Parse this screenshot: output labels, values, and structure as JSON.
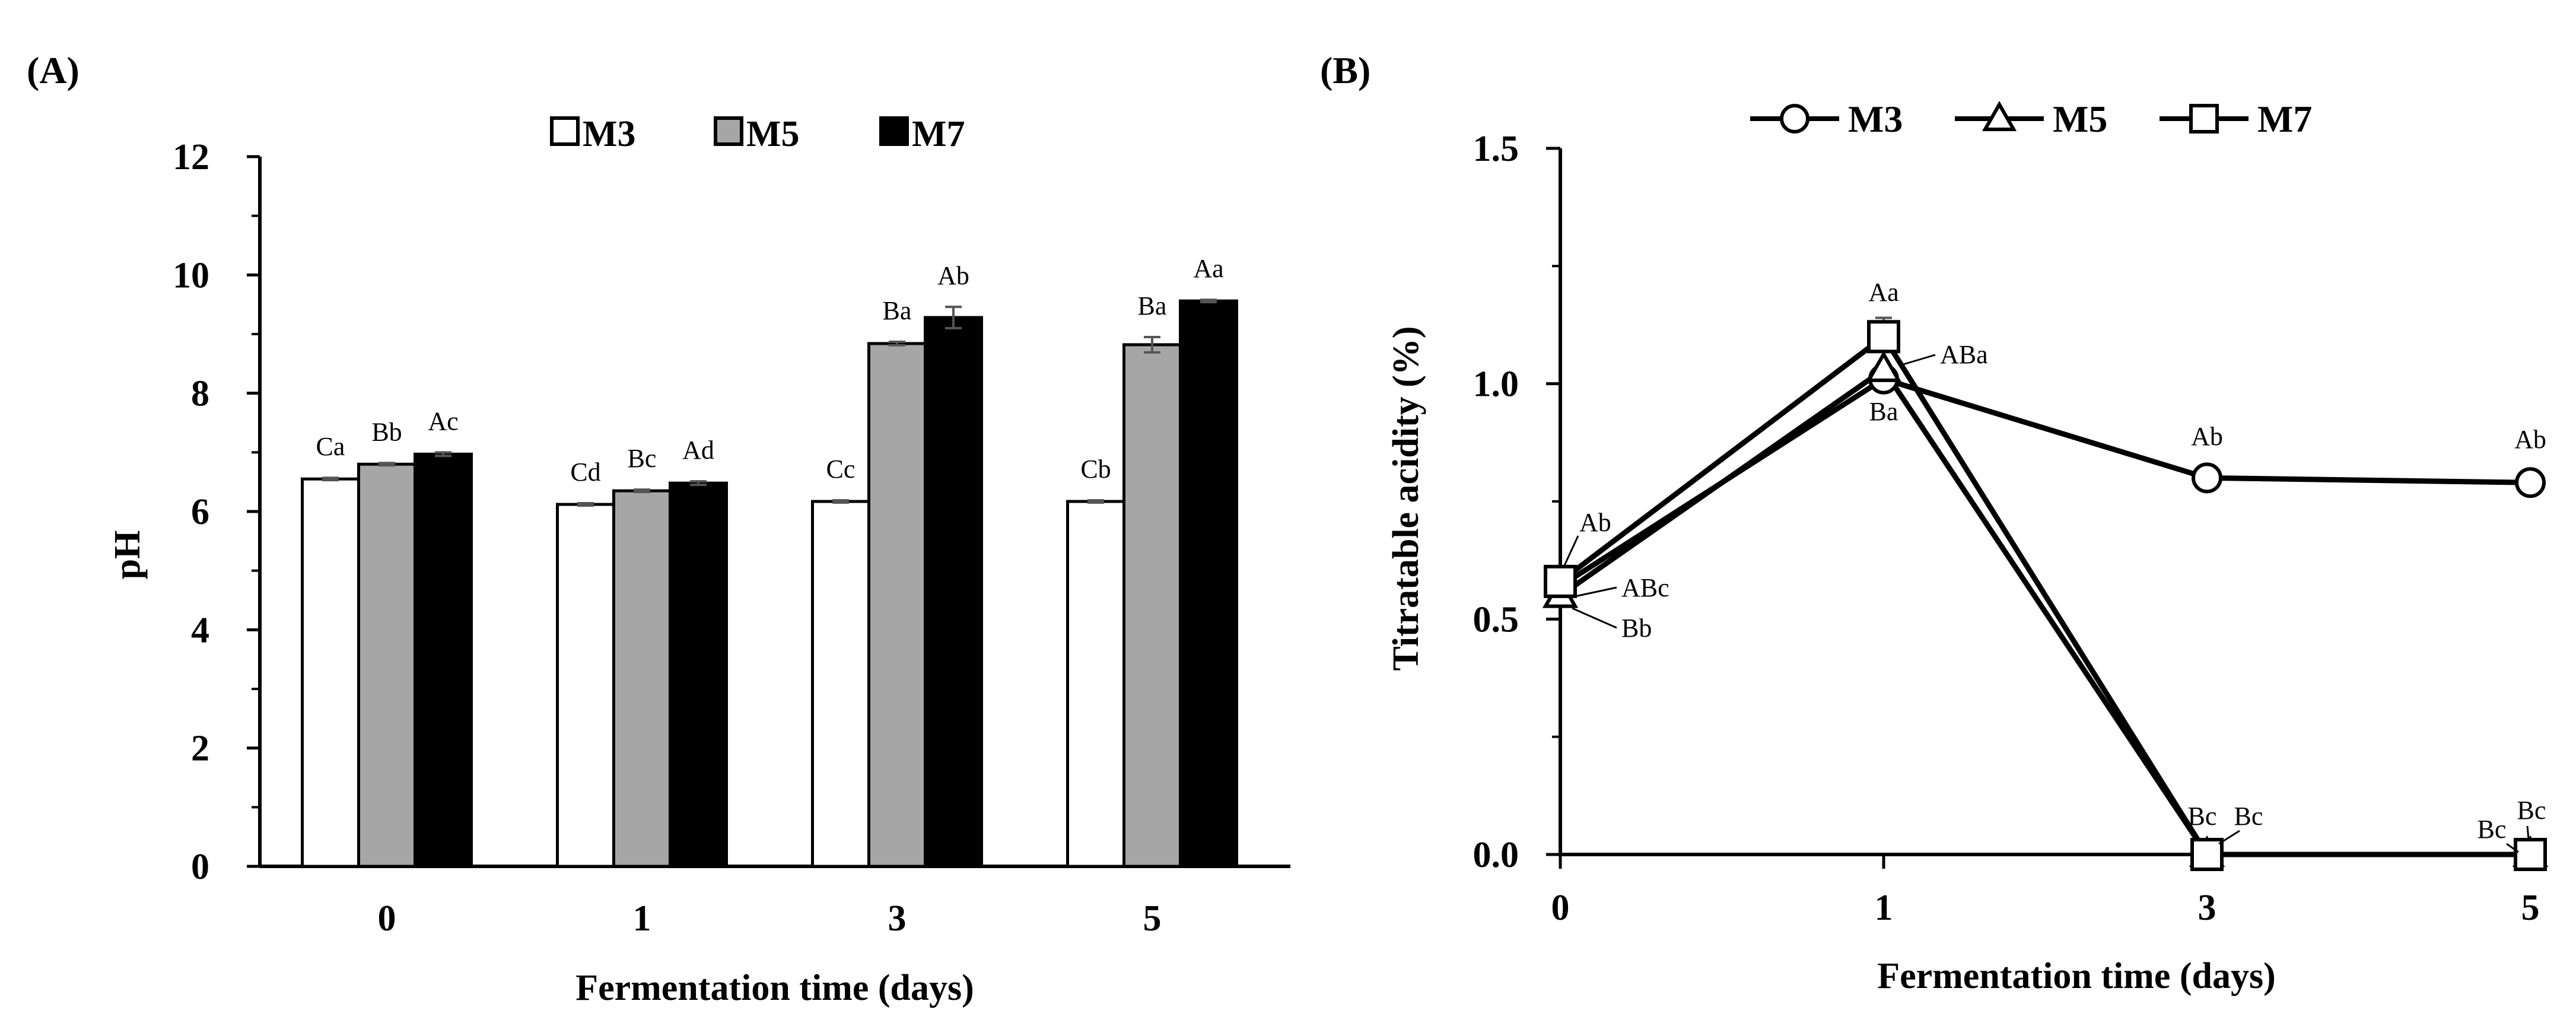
{
  "chart_data": [
    {
      "panel_label": "(A)",
      "type": "bar",
      "title": "",
      "xlabel": "Fermentation time (days)",
      "ylabel": "pH",
      "categories": [
        "0",
        "1",
        "3",
        "5"
      ],
      "ylim": [
        0,
        12
      ],
      "yticks": [
        "0",
        "2",
        "4",
        "6",
        "8",
        "10",
        "12"
      ],
      "legend_position": "top-center",
      "series": [
        {
          "name": "M3",
          "color": "#ffffff",
          "values": [
            6.55,
            6.12,
            6.17,
            6.17
          ],
          "errors": [
            0.02,
            0.02,
            0.02,
            0.02
          ],
          "labels": [
            "Ca",
            "Cd",
            "Cc",
            "Cb"
          ]
        },
        {
          "name": "M5",
          "color": "#a6a6a6",
          "values": [
            6.8,
            6.35,
            8.84,
            8.82
          ],
          "errors": [
            0.02,
            0.02,
            0.03,
            0.13
          ],
          "labels": [
            "Bb",
            "Bc",
            "Ba",
            "Ba"
          ]
        },
        {
          "name": "M7",
          "color": "#000000",
          "values": [
            6.97,
            6.48,
            9.28,
            9.56
          ],
          "errors": [
            0.03,
            0.03,
            0.18,
            0.02
          ],
          "labels": [
            "Ac",
            "Ad",
            "Ab",
            "Aa"
          ]
        }
      ]
    },
    {
      "panel_label": "(B)",
      "type": "line",
      "title": "",
      "xlabel": "Fermentation time (days)",
      "ylabel": "Titratable acidity (%)",
      "x": [
        "0",
        "1",
        "3",
        "5"
      ],
      "ylim": [
        0,
        1.5
      ],
      "yticks": [
        "0.0",
        "0.5",
        "1.0",
        "1.5"
      ],
      "legend_position": "top-center",
      "series": [
        {
          "name": "M3",
          "marker": "circle",
          "values": [
            0.57,
            1.01,
            0.8,
            0.79
          ],
          "labels": [
            "Ab",
            "Ba",
            "Ab",
            "Ab"
          ]
        },
        {
          "name": "M5",
          "marker": "triangle",
          "values": [
            0.55,
            1.03,
            0.0,
            0.0
          ],
          "labels": [
            "Bb",
            "ABa",
            "Bc",
            "Bc"
          ]
        },
        {
          "name": "M7",
          "marker": "square",
          "values": [
            0.58,
            1.1,
            0.0,
            0.0
          ],
          "labels": [
            "ABc",
            "Aa",
            "Bc",
            "Bc"
          ]
        }
      ]
    }
  ]
}
